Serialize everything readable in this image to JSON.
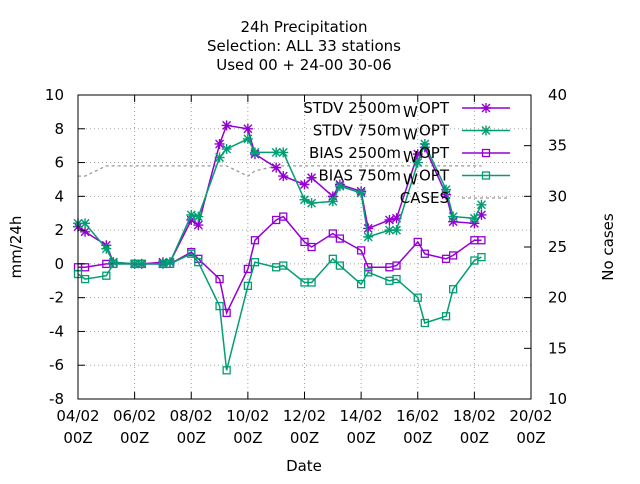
{
  "chart_data": {
    "type": "line",
    "title_lines": [
      "24h Precipitation",
      "Selection: ALL      33 stations",
      "Used  00 + 24-00 30-06"
    ],
    "xlabel": "Date",
    "ylabel": "mm/24h",
    "y2label": "No cases",
    "ylim": [
      -8,
      10
    ],
    "y2lim": [
      10,
      40
    ],
    "xlim": [
      0,
      16
    ],
    "x_unit": "days after 04/02 00Z",
    "yticks": [
      -8,
      -6,
      -4,
      -2,
      0,
      2,
      4,
      6,
      8,
      10
    ],
    "y2ticks": [
      10,
      15,
      20,
      25,
      30,
      35,
      40
    ],
    "xticks": [
      {
        "x": 0,
        "line1": "04/02",
        "line2": "00Z"
      },
      {
        "x": 2,
        "line1": "06/02",
        "line2": "00Z"
      },
      {
        "x": 4,
        "line1": "08/02",
        "line2": "00Z"
      },
      {
        "x": 6,
        "line1": "10/02",
        "line2": "00Z"
      },
      {
        "x": 8,
        "line1": "12/02",
        "line2": "00Z"
      },
      {
        "x": 10,
        "line1": "14/02",
        "line2": "00Z"
      },
      {
        "x": 12,
        "line1": "16/02",
        "line2": "00Z"
      },
      {
        "x": 14,
        "line1": "18/02",
        "line2": "00Z"
      },
      {
        "x": 16,
        "line1": "20/02",
        "line2": "00Z"
      }
    ],
    "grid": true,
    "legend_position": "top-right",
    "series": [
      {
        "name": "STDV 2500m",
        "legend_sub": "W",
        "legend_suffix": "OPT",
        "color": "#9400d3",
        "marker": "star",
        "axis": "y",
        "x": [
          0.0,
          0.25,
          1.0,
          1.25,
          2.0,
          2.25,
          3.0,
          3.25,
          4.0,
          4.25,
          5.0,
          5.25,
          6.0,
          6.25,
          7.0,
          7.25,
          8.0,
          8.25,
          9.0,
          9.25,
          10.0,
          10.25,
          11.0,
          11.25,
          12.0,
          12.25,
          13.0,
          13.25,
          14.0,
          14.25
        ],
        "values": [
          2.2,
          1.9,
          1.1,
          0.1,
          0.0,
          0.0,
          0.1,
          0.1,
          2.6,
          2.3,
          7.1,
          8.2,
          8.0,
          6.5,
          5.7,
          5.2,
          4.7,
          5.1,
          4.0,
          4.7,
          4.3,
          2.1,
          2.6,
          2.7,
          6.5,
          6.9,
          4.1,
          2.5,
          2.4,
          2.9
        ]
      },
      {
        "name": "STDV 750m",
        "legend_sub": "W",
        "legend_suffix": "OPT",
        "color": "#009e73",
        "marker": "star",
        "axis": "y",
        "x": [
          0.0,
          0.25,
          1.0,
          1.25,
          2.0,
          2.25,
          3.0,
          3.25,
          4.0,
          4.25,
          5.0,
          5.25,
          6.0,
          6.25,
          7.0,
          7.25,
          8.0,
          8.25,
          9.0,
          9.25,
          10.0,
          10.25,
          11.0,
          11.25,
          12.0,
          12.25,
          13.0,
          13.25,
          14.0,
          14.25
        ],
        "values": [
          2.4,
          2.4,
          0.9,
          0.1,
          0.0,
          0.0,
          0.0,
          0.1,
          2.9,
          2.8,
          6.3,
          6.8,
          7.4,
          6.6,
          6.6,
          6.6,
          3.8,
          3.6,
          3.7,
          4.6,
          4.2,
          1.6,
          2.0,
          2.0,
          6.0,
          7.1,
          4.4,
          2.8,
          2.7,
          3.5
        ]
      },
      {
        "name": "BIAS 2500m",
        "legend_sub": "W",
        "legend_suffix": "OPT",
        "color": "#9400d3",
        "marker": "square",
        "axis": "y",
        "x": [
          0.0,
          0.25,
          1.0,
          1.25,
          2.0,
          2.25,
          3.0,
          3.25,
          4.0,
          4.25,
          5.0,
          5.25,
          6.0,
          6.25,
          7.0,
          7.25,
          8.0,
          8.25,
          9.0,
          9.25,
          10.0,
          10.25,
          11.0,
          11.25,
          12.0,
          12.25,
          13.0,
          13.25,
          14.0,
          14.25
        ],
        "values": [
          -0.2,
          -0.2,
          0.0,
          0.0,
          0.0,
          0.0,
          0.0,
          0.0,
          0.7,
          0.3,
          -0.9,
          -2.9,
          -0.3,
          1.4,
          2.6,
          2.8,
          1.3,
          1.0,
          1.8,
          1.5,
          0.8,
          -0.2,
          -0.2,
          -0.1,
          1.3,
          0.6,
          0.3,
          0.5,
          1.4,
          1.4
        ]
      },
      {
        "name": "BIAS 750m",
        "legend_sub": "W",
        "legend_suffix": "OPT",
        "color": "#009e73",
        "marker": "square",
        "axis": "y",
        "x": [
          0.0,
          0.25,
          1.0,
          1.25,
          2.0,
          2.25,
          3.0,
          3.25,
          4.0,
          4.25,
          5.0,
          5.25,
          6.0,
          6.25,
          7.0,
          7.25,
          8.0,
          8.25,
          9.0,
          9.25,
          10.0,
          10.25,
          11.0,
          11.25,
          12.0,
          12.25,
          13.0,
          13.25,
          14.0,
          14.25
        ],
        "values": [
          -0.6,
          -0.9,
          -0.7,
          0.0,
          0.0,
          0.0,
          0.0,
          0.0,
          0.6,
          0.1,
          -2.5,
          -6.3,
          -1.3,
          0.1,
          -0.2,
          -0.1,
          -1.1,
          -1.1,
          0.3,
          -0.1,
          -1.2,
          -0.5,
          -1.0,
          -0.9,
          -2.0,
          -3.5,
          -3.1,
          -1.5,
          0.2,
          0.4
        ]
      },
      {
        "name": "CASES",
        "color": "#999999",
        "marker": "none",
        "dashed": true,
        "axis": "y2",
        "x": [
          0.0,
          0.25,
          1.0,
          1.25,
          2.0,
          2.25,
          3.0,
          3.25,
          4.0,
          4.25,
          5.0,
          5.25,
          6.0,
          6.25,
          7.0,
          7.25,
          8.0,
          8.25,
          9.0,
          9.25,
          10.0,
          10.25,
          11.0,
          11.25,
          12.0,
          12.25,
          13.0,
          13.25,
          14.0,
          14.25
        ],
        "values": [
          32,
          32,
          33,
          33,
          33,
          33,
          33,
          33,
          33,
          33,
          33,
          33,
          32,
          32.5,
          33,
          33,
          33,
          33,
          33,
          33,
          33,
          33,
          33,
          33,
          33,
          33,
          33,
          33,
          33,
          33
        ]
      }
    ]
  }
}
